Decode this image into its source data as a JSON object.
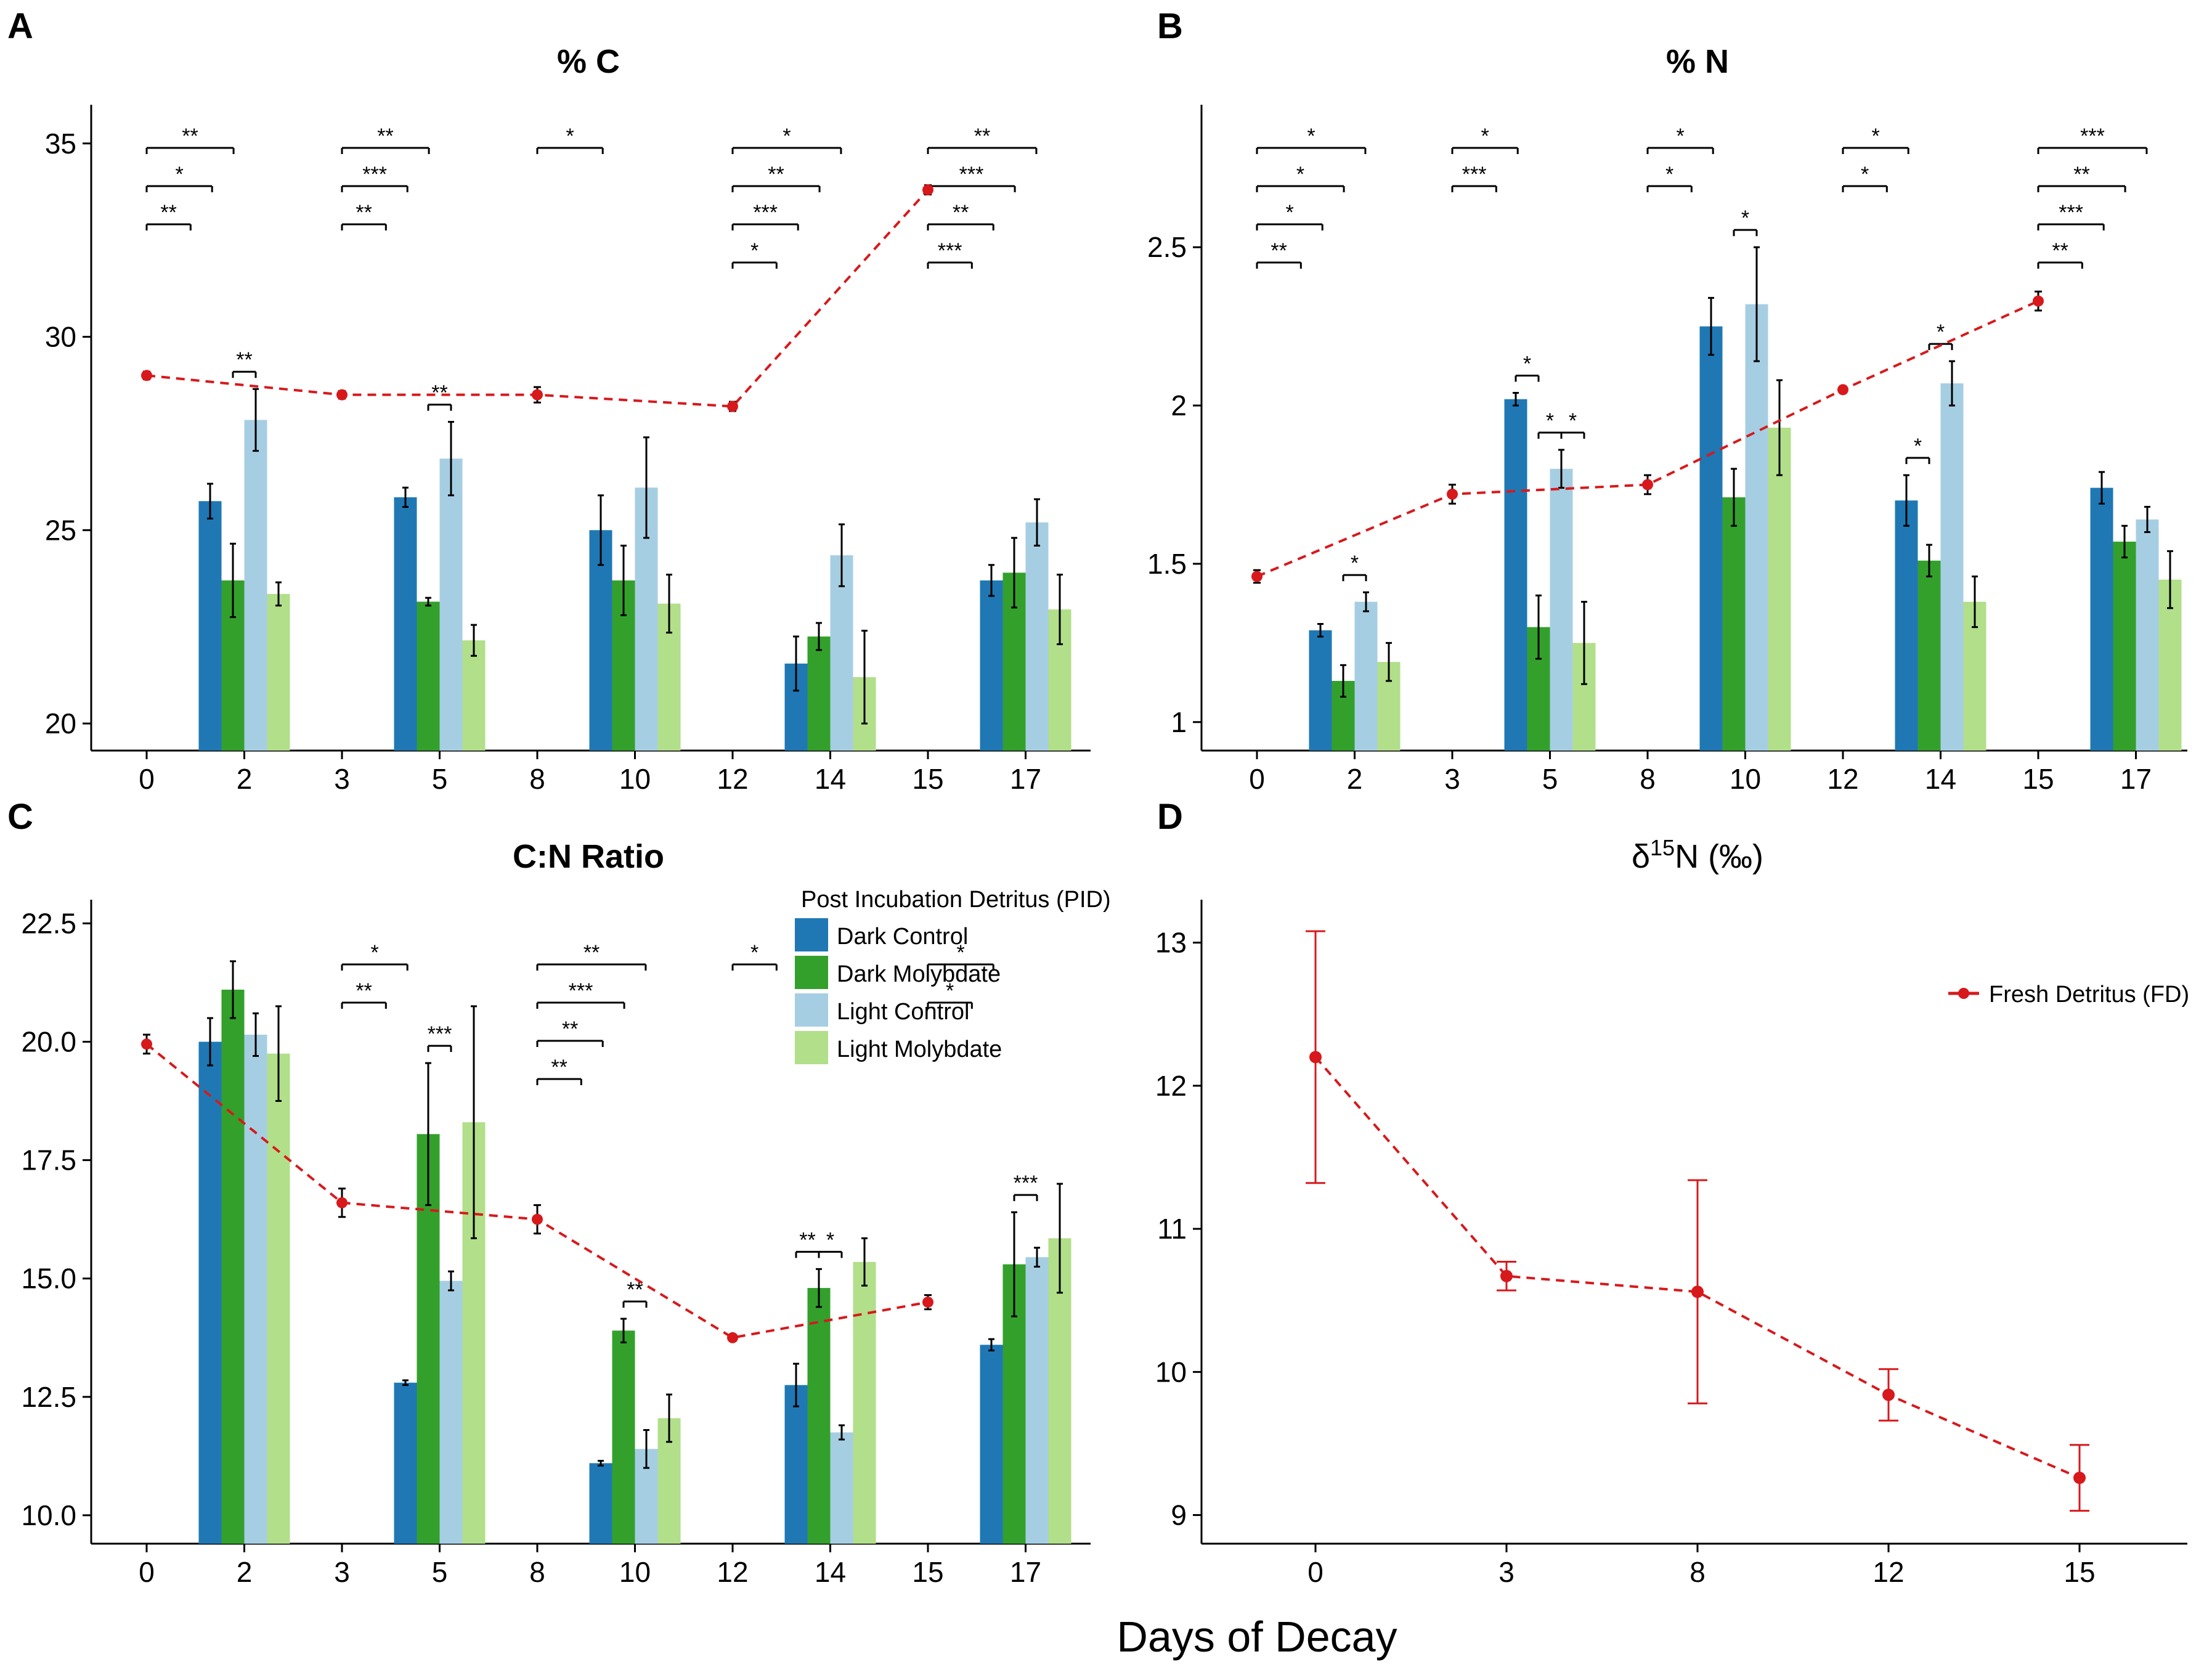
{
  "figure": {
    "x_axis_title": "Days of Decay",
    "colors": {
      "dark_control": "#1f78b4",
      "dark_molybdate": "#33a02c",
      "light_control": "#a6cee3",
      "light_molybdate": "#b2df8a",
      "fresh_detritus": "#d7191c"
    }
  },
  "legend": {
    "title": "Post Incubation Detritus (PID)",
    "series": [
      "Dark Control",
      "Dark Molybdate",
      "Light Control",
      "Light Molybdate"
    ],
    "fd_label": "Fresh Detritus (FD)"
  },
  "chart_data": [
    {
      "panel": "A",
      "title": "% C",
      "type": "bar",
      "x_ticks": [
        "0",
        "2",
        "3",
        "5",
        "8",
        "10",
        "12",
        "14",
        "15",
        "17"
      ],
      "ylim": [
        19.3,
        36.0
      ],
      "y_ticks": [
        20,
        25,
        30,
        35
      ],
      "bar_categories": [
        "2",
        "5",
        "10",
        "14",
        "17"
      ],
      "series": [
        {
          "name": "Dark Control",
          "values": [
            25.75,
            25.85,
            25.0,
            21.55,
            23.7
          ],
          "errors": [
            0.45,
            0.25,
            0.9,
            0.7,
            0.4
          ]
        },
        {
          "name": "Dark Molybdate",
          "values": [
            23.7,
            23.15,
            23.7,
            22.25,
            23.9
          ],
          "errors": [
            0.95,
            0.1,
            0.9,
            0.35,
            0.9
          ]
        },
        {
          "name": "Light Control",
          "values": [
            27.85,
            26.85,
            26.1,
            24.35,
            25.2
          ],
          "errors": [
            0.8,
            0.95,
            1.3,
            0.8,
            0.6
          ]
        },
        {
          "name": "Light Molybdate",
          "values": [
            23.35,
            22.15,
            23.1,
            21.2,
            22.95
          ],
          "errors": [
            0.3,
            0.4,
            0.75,
            1.2,
            0.9
          ]
        }
      ],
      "fresh_detritus": {
        "x": [
          "0",
          "3",
          "8",
          "12",
          "15"
        ],
        "values": [
          29.0,
          28.5,
          28.5,
          28.2,
          33.8
        ],
        "errors": [
          0.1,
          0.1,
          0.2,
          0.12,
          0.12
        ]
      },
      "annotations": [
        {
          "from": "0",
          "to": "2",
          "level": 1,
          "label": "**"
        },
        {
          "from": "0",
          "to": "2",
          "level": 2,
          "label": "*"
        },
        {
          "from": "0",
          "to": "2",
          "level": 3,
          "label": "**"
        },
        {
          "from": "3",
          "to": "5",
          "level": 1,
          "label": "**"
        },
        {
          "from": "3",
          "to": "5",
          "level": 2,
          "label": "***"
        },
        {
          "from": "3",
          "to": "5",
          "level": 3,
          "label": "**"
        },
        {
          "from": "8",
          "to": "10",
          "level": 2,
          "label": "*"
        },
        {
          "from": "12",
          "to": "14",
          "level": 1,
          "label": "*"
        },
        {
          "from": "12",
          "to": "14",
          "level": 2,
          "label": "***"
        },
        {
          "from": "12",
          "to": "14",
          "level": 3,
          "label": "**"
        },
        {
          "from": "12",
          "to": "14",
          "level": 4,
          "label": "*"
        },
        {
          "from": "15",
          "to": "17",
          "level": 1,
          "label": "***"
        },
        {
          "from": "15",
          "to": "17",
          "level": 2,
          "label": "**"
        },
        {
          "from": "15",
          "to": "17",
          "level": 3,
          "label": "***"
        },
        {
          "from": "15",
          "to": "17",
          "level": 4,
          "label": "**"
        }
      ],
      "inner_annotations": [
        {
          "category": "2",
          "label": "**"
        },
        {
          "category": "5",
          "label": "**"
        }
      ]
    },
    {
      "panel": "B",
      "title": "% N",
      "type": "bar",
      "x_ticks": [
        "0",
        "2",
        "3",
        "5",
        "8",
        "10",
        "12",
        "14",
        "15",
        "17"
      ],
      "ylim": [
        0.91,
        2.95
      ],
      "y_ticks": [
        1.0,
        1.5,
        2.0,
        2.5
      ],
      "bar_categories": [
        "2",
        "5",
        "10",
        "14",
        "17"
      ],
      "series": [
        {
          "name": "Dark Control",
          "values": [
            1.29,
            2.02,
            2.25,
            1.7,
            1.74
          ],
          "errors": [
            0.02,
            0.02,
            0.09,
            0.08,
            0.05
          ]
        },
        {
          "name": "Dark Molybdate",
          "values": [
            1.13,
            1.3,
            1.71,
            1.51,
            1.57
          ],
          "errors": [
            0.05,
            0.1,
            0.09,
            0.05,
            0.05
          ]
        },
        {
          "name": "Light Control",
          "values": [
            1.38,
            1.8,
            2.32,
            2.07,
            1.64
          ],
          "errors": [
            0.03,
            0.06,
            0.18,
            0.07,
            0.04
          ]
        },
        {
          "name": "Light Molybdate",
          "values": [
            1.19,
            1.25,
            1.93,
            1.38,
            1.45
          ],
          "errors": [
            0.06,
            0.13,
            0.15,
            0.08,
            0.09
          ]
        }
      ],
      "fresh_detritus": {
        "x": [
          "0",
          "3",
          "8",
          "12",
          "15"
        ],
        "values": [
          1.46,
          1.72,
          1.75,
          2.05,
          2.33
        ],
        "errors": [
          0.02,
          0.03,
          0.03,
          0.01,
          0.03
        ]
      },
      "annotations": [
        {
          "from": "0",
          "to": "2",
          "level": 1,
          "label": "**"
        },
        {
          "from": "0",
          "to": "2",
          "level": 2,
          "label": "*"
        },
        {
          "from": "0",
          "to": "2",
          "level": 3,
          "label": "*"
        },
        {
          "from": "0",
          "to": "2",
          "level": 4,
          "label": "*"
        },
        {
          "from": "3",
          "to": "5",
          "level": 1,
          "label": "***"
        },
        {
          "from": "3",
          "to": "5",
          "level": 2,
          "label": "*"
        },
        {
          "from": "8",
          "to": "10",
          "level": 1,
          "label": "*"
        },
        {
          "from": "8",
          "to": "10",
          "level": 2,
          "label": "*"
        },
        {
          "from": "12",
          "to": "14",
          "level": 1,
          "label": "*"
        },
        {
          "from": "12",
          "to": "14",
          "level": 2,
          "label": "*"
        },
        {
          "from": "15",
          "to": "17",
          "level": 1,
          "label": "**"
        },
        {
          "from": "15",
          "to": "17",
          "level": 2,
          "label": "***"
        },
        {
          "from": "15",
          "to": "17",
          "level": 3,
          "label": "**"
        },
        {
          "from": "15",
          "to": "17",
          "level": 4,
          "label": "***"
        }
      ],
      "inner_annotations": [
        {
          "category": "2",
          "label": "*"
        },
        {
          "category": "5",
          "label": "*"
        },
        {
          "category": "5",
          "label": "*"
        },
        {
          "category": "5",
          "label": "*"
        },
        {
          "category": "10",
          "label": "*"
        },
        {
          "category": "14",
          "label": "*"
        },
        {
          "category": "14",
          "label": "*"
        }
      ]
    },
    {
      "panel": "C",
      "title": "C:N Ratio",
      "type": "bar",
      "x_ticks": [
        "0",
        "2",
        "3",
        "5",
        "8",
        "10",
        "12",
        "14",
        "15",
        "17"
      ],
      "ylim": [
        9.4,
        23.0
      ],
      "y_ticks": [
        10.0,
        12.5,
        15.0,
        17.5,
        20.0,
        22.5
      ],
      "y_tick_labels": [
        "10.0",
        "12.5",
        "15.0",
        "17.5",
        "20.0",
        "22.5"
      ],
      "bar_categories": [
        "2",
        "5",
        "10",
        "14",
        "17"
      ],
      "series": [
        {
          "name": "Dark Control",
          "values": [
            20.0,
            12.8,
            11.1,
            12.75,
            13.6
          ],
          "errors": [
            0.5,
            0.05,
            0.05,
            0.45,
            0.12
          ]
        },
        {
          "name": "Dark Molybdate",
          "values": [
            21.1,
            18.05,
            13.9,
            14.8,
            15.3
          ],
          "errors": [
            0.6,
            1.5,
            0.25,
            0.4,
            1.1
          ]
        },
        {
          "name": "Light Control",
          "values": [
            20.15,
            14.95,
            11.4,
            11.75,
            15.45
          ],
          "errors": [
            0.45,
            0.2,
            0.4,
            0.15,
            0.2
          ]
        },
        {
          "name": "Light Molybdate",
          "values": [
            19.75,
            18.3,
            12.05,
            15.35,
            15.85
          ],
          "errors": [
            1.0,
            2.45,
            0.5,
            0.5,
            1.15
          ]
        }
      ],
      "fresh_detritus": {
        "x": [
          "0",
          "3",
          "8",
          "12",
          "15"
        ],
        "values": [
          19.95,
          16.6,
          16.25,
          13.75,
          14.5
        ],
        "errors": [
          0.2,
          0.3,
          0.3,
          0.05,
          0.15
        ]
      },
      "annotations": [
        {
          "from": "3",
          "to": "5",
          "level": 1,
          "label": "**"
        },
        {
          "from": "3",
          "to": "5",
          "level": 2,
          "label": "*"
        },
        {
          "from": "8",
          "to": "10",
          "level": 1,
          "label": "**"
        },
        {
          "from": "8",
          "to": "10",
          "level": 2,
          "label": "**"
        },
        {
          "from": "8",
          "to": "10",
          "level": 3,
          "label": "***"
        },
        {
          "from": "8",
          "to": "10",
          "level": 4,
          "label": "**"
        },
        {
          "from": "12",
          "to": "14",
          "level": 1,
          "label": "*"
        },
        {
          "from": "15",
          "to": "17",
          "level": 1,
          "label": "*"
        },
        {
          "from": "15",
          "to": "17",
          "level": 2,
          "label": "*"
        }
      ],
      "inner_annotations": [
        {
          "category": "5",
          "label": "***"
        },
        {
          "category": "10",
          "label": "**"
        },
        {
          "category": "14",
          "label": "*"
        },
        {
          "category": "14",
          "label": "**"
        },
        {
          "category": "17",
          "label": "***"
        }
      ]
    },
    {
      "panel": "D",
      "title_prefix": "δ",
      "title_sup": "15",
      "title_suffix": "N (‰)",
      "type": "line",
      "x": [
        "0",
        "3",
        "8",
        "12",
        "15"
      ],
      "values": [
        12.2,
        10.67,
        10.56,
        9.84,
        9.26
      ],
      "errors": [
        0.88,
        0.1,
        0.78,
        0.18,
        0.23
      ],
      "ylim": [
        8.8,
        13.3
      ],
      "y_ticks": [
        9,
        10,
        11,
        12,
        13
      ],
      "series_name": "Fresh Detritus (FD)"
    }
  ]
}
